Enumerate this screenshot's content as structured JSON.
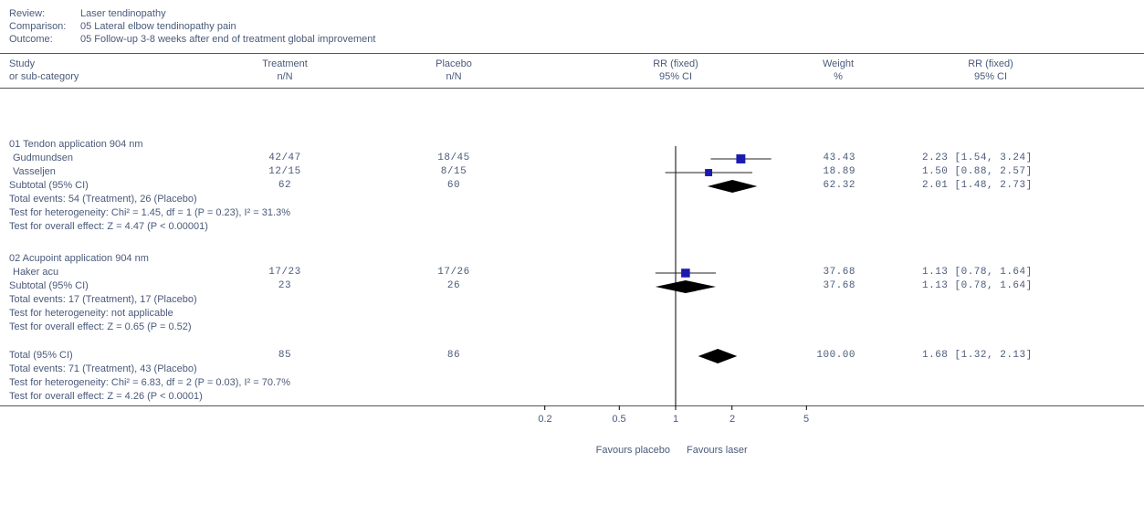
{
  "header": {
    "review_label": "Review:",
    "review_value": "Laser tendinopathy",
    "comparison_label": "Comparison:",
    "comparison_value": "05 Lateral elbow tendinopathy pain",
    "outcome_label": "Outcome:",
    "outcome_value": "05 Follow-up 3-8 weeks after end of treatment global improvement"
  },
  "columns": {
    "study_1": "Study",
    "study_2": "or sub-category",
    "treatment_1": "Treatment",
    "treatment_2": "n/N",
    "placebo_1": "Placebo",
    "placebo_2": "n/N",
    "rr_plot_1": "RR (fixed)",
    "rr_plot_2": "95% CI",
    "weight_1": "Weight",
    "weight_2": "%",
    "rr_text_1": "RR (fixed)",
    "rr_text_2": "95% CI"
  },
  "groups": [
    {
      "title": "01 Tendon application 904 nm",
      "studies": [
        {
          "name": "Gudmundsen",
          "treatment": "42/47",
          "placebo": "18/45",
          "weight": "43.43",
          "rr_text": "2.23 [1.54, 3.24]"
        },
        {
          "name": "Vasseljen",
          "treatment": "12/15",
          "placebo": "8/15",
          "weight": "18.89",
          "rr_text": "1.50 [0.88, 2.57]"
        }
      ],
      "subtotal": {
        "label": "Subtotal (95% CI)",
        "treatment": "62",
        "placebo": "60",
        "weight": "62.32",
        "rr_text": "2.01 [1.48, 2.73]"
      },
      "notes": [
        "Total events: 54 (Treatment), 26 (Placebo)",
        "Test for heterogeneity: Chi² = 1.45, df = 1 (P = 0.23), I² = 31.3%",
        "Test for overall effect: Z = 4.47 (P < 0.00001)"
      ]
    },
    {
      "title": "02 Acupoint application 904 nm",
      "studies": [
        {
          "name": "Haker acu",
          "treatment": "17/23",
          "placebo": "17/26",
          "weight": "37.68",
          "rr_text": "1.13 [0.78, 1.64]"
        }
      ],
      "subtotal": {
        "label": "Subtotal (95% CI)",
        "treatment": "23",
        "placebo": "26",
        "weight": "37.68",
        "rr_text": "1.13 [0.78, 1.64]"
      },
      "notes": [
        "Total events: 17 (Treatment), 17 (Placebo)",
        "Test for heterogeneity: not applicable",
        "Test for overall effect: Z = 0.65 (P = 0.52)"
      ]
    }
  ],
  "total": {
    "label": "Total (95% CI)",
    "treatment": "85",
    "placebo": "86",
    "weight": "100.00",
    "rr_text": "1.68 [1.32, 2.13]",
    "notes": [
      "Total events: 71 (Treatment), 43 (Placebo)",
      "Test for heterogeneity: Chi² = 6.83, df = 2 (P = 0.03), I² = 70.7%",
      "Test for overall effect: Z = 4.26 (P < 0.0001)"
    ]
  },
  "axis": {
    "ticks": [
      "0.2",
      "0.5",
      "1",
      "2",
      "5"
    ],
    "favours_left": "Favours placebo",
    "favours_right": "Favours laser"
  },
  "colors": {
    "study_marker": "#1a1ab0",
    "diamond": "#000000",
    "text": "#4a5a7a"
  },
  "chart_data": {
    "type": "forest",
    "scale": "log",
    "xlim": [
      0.1,
      10
    ],
    "ticks": [
      0.2,
      0.5,
      1,
      2,
      5
    ],
    "rows": [
      {
        "kind": "study",
        "name": "Gudmundsen",
        "rr": 2.23,
        "lo": 1.54,
        "hi": 3.24,
        "weight": 43.43
      },
      {
        "kind": "study",
        "name": "Vasseljen",
        "rr": 1.5,
        "lo": 0.88,
        "hi": 2.57,
        "weight": 18.89
      },
      {
        "kind": "subtotal",
        "name": "Subtotal (95% CI)",
        "rr": 2.01,
        "lo": 1.48,
        "hi": 2.73,
        "weight": 62.32
      },
      {
        "kind": "study",
        "name": "Haker acu",
        "rr": 1.13,
        "lo": 0.78,
        "hi": 1.64,
        "weight": 37.68
      },
      {
        "kind": "subtotal",
        "name": "Subtotal (95% CI)",
        "rr": 1.13,
        "lo": 0.78,
        "hi": 1.64,
        "weight": 37.68
      },
      {
        "kind": "total",
        "name": "Total (95% CI)",
        "rr": 1.68,
        "lo": 1.32,
        "hi": 2.13,
        "weight": 100.0
      }
    ]
  }
}
